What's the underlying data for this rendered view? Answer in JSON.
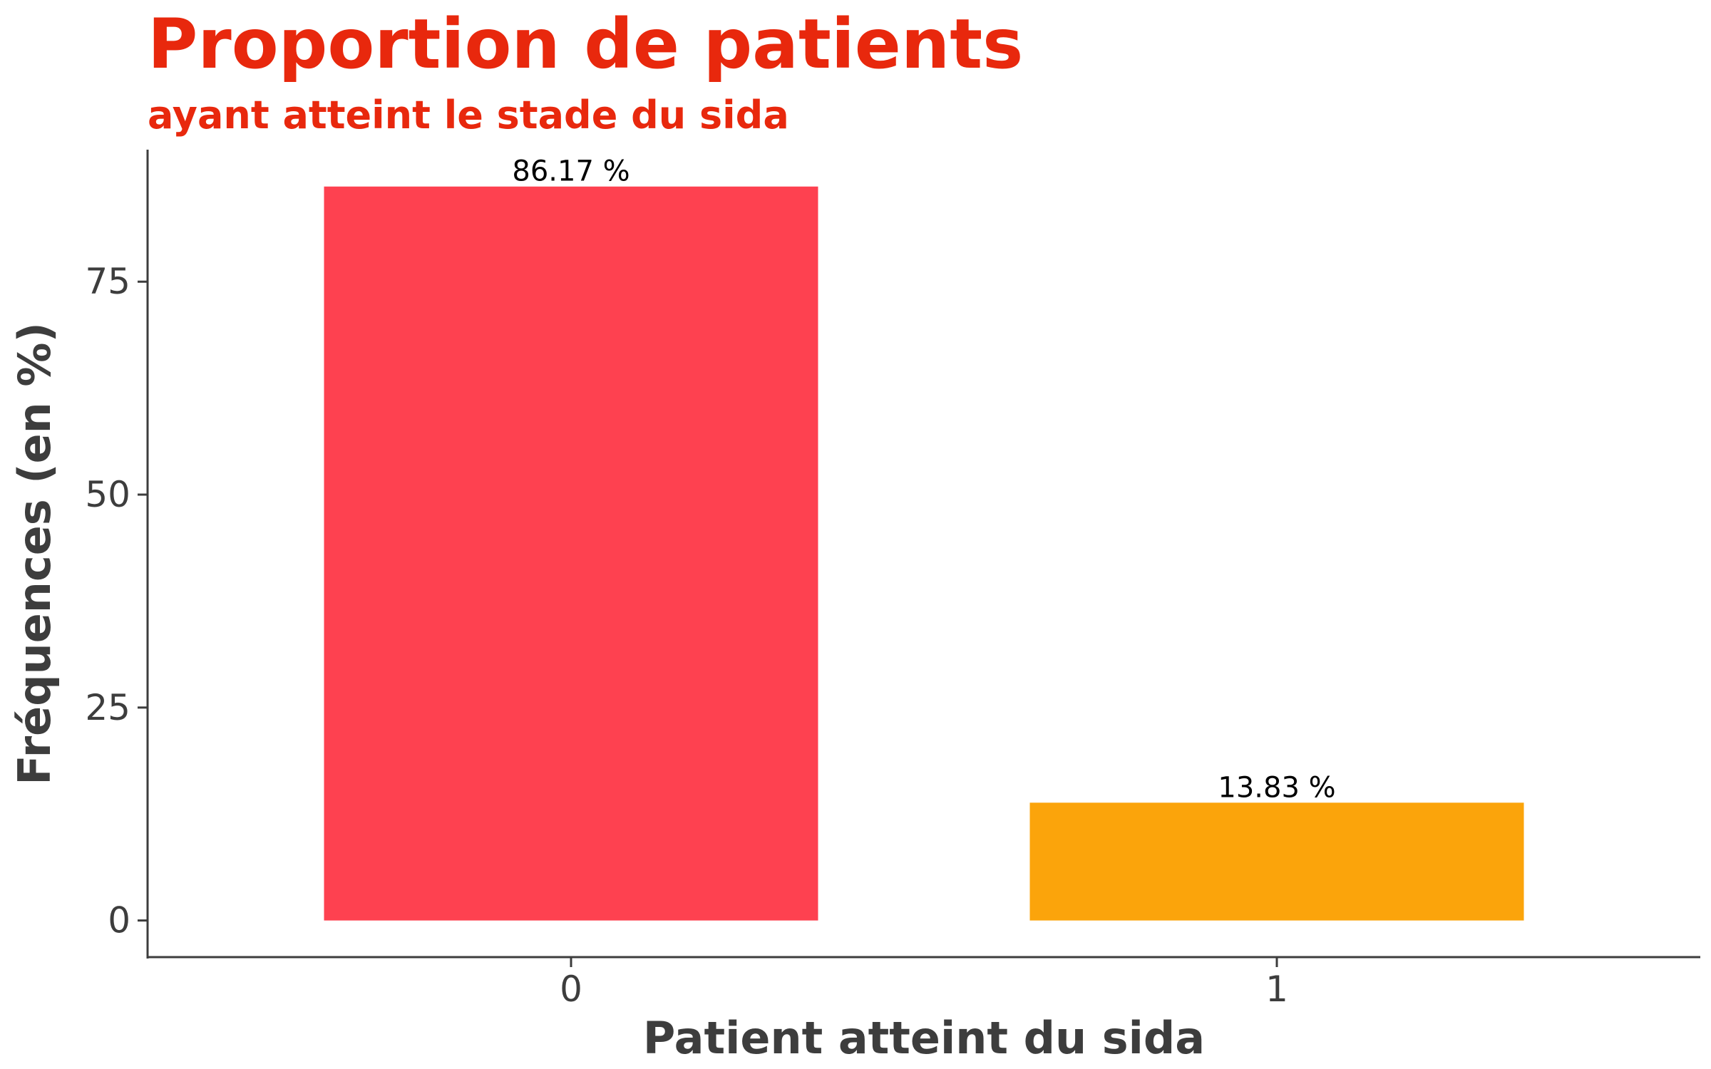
{
  "chart_data": {
    "type": "bar",
    "title": "Proportion de patients",
    "subtitle": "ayant atteint le stade du sida",
    "xlabel": "Patient atteint du sida",
    "ylabel": "Fréquences (en %)",
    "categories": [
      "0",
      "1"
    ],
    "values": [
      86.17,
      13.83
    ],
    "value_labels": [
      "86.17 %",
      "13.83 %"
    ],
    "bar_colors": [
      "#fe4150",
      "#fba40b"
    ],
    "yticks": [
      0,
      25,
      50,
      75
    ],
    "ytick_labels": [
      "0",
      "25",
      "50",
      "75"
    ],
    "ylim": [
      -4.3,
      90.5
    ],
    "grid": false,
    "legend": "none"
  },
  "colors": {
    "title": "#e8280d",
    "axis": "#3d3d3d",
    "label_text": "#000000"
  }
}
